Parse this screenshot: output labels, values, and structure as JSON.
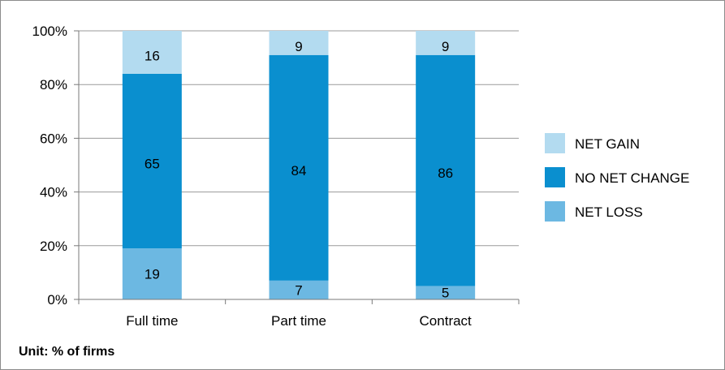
{
  "chart_data": {
    "type": "bar",
    "stacked": true,
    "percent_stacked": true,
    "categories": [
      "Full time",
      "Part time",
      "Contract"
    ],
    "series": [
      {
        "name": "NET LOSS",
        "values": [
          19,
          7,
          5
        ],
        "color": "#6cb8e2"
      },
      {
        "name": "NO NET CHANGE",
        "values": [
          65,
          84,
          86
        ],
        "color": "#0a8fcf"
      },
      {
        "name": "NET GAIN",
        "values": [
          16,
          9,
          9
        ],
        "color": "#b3dbf0"
      }
    ],
    "legend_order": [
      "NET GAIN",
      "NO NET CHANGE",
      "NET LOSS"
    ],
    "y_ticks": [
      "0%",
      "20%",
      "40%",
      "60%",
      "80%",
      "100%"
    ],
    "ylim": [
      0,
      100
    ],
    "grid": true,
    "legend_position": "right"
  },
  "note": "Unit: % of firms"
}
